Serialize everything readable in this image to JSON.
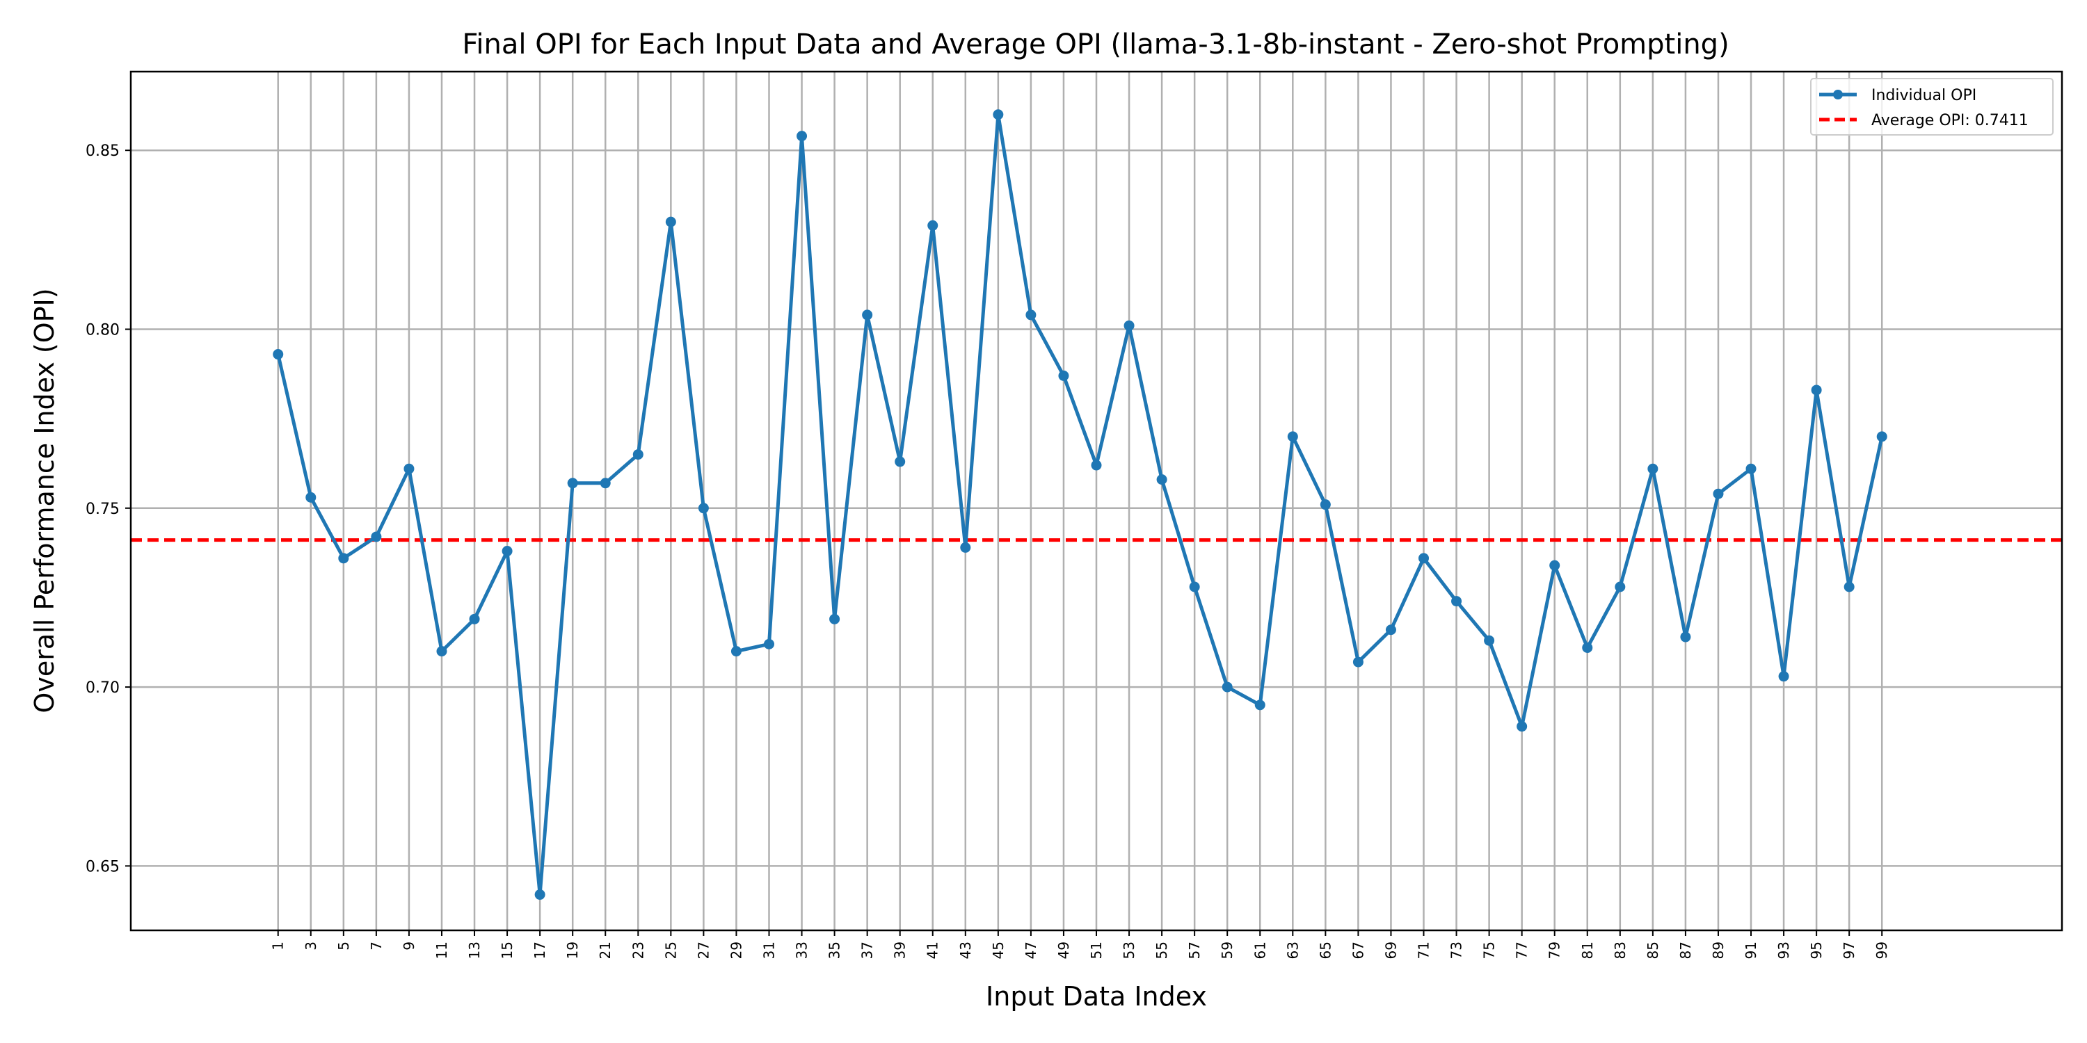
{
  "chart_data": {
    "type": "line",
    "title": "Final OPI for Each Input Data and Average OPI (llama-3.1-8b-instant - Zero-shot Prompting)",
    "xlabel": "Input Data Index",
    "ylabel": "Overall Performance Index (OPI)",
    "x": [
      1,
      3,
      5,
      7,
      9,
      11,
      13,
      15,
      17,
      19,
      21,
      23,
      25,
      27,
      29,
      31,
      33,
      35,
      37,
      39,
      41,
      43,
      45,
      47,
      49,
      51,
      53,
      55,
      57,
      59,
      61,
      63,
      65,
      67,
      69,
      71,
      73,
      75,
      77,
      79,
      81,
      83,
      85,
      87,
      89,
      91,
      93,
      95,
      97,
      99
    ],
    "xticks": [
      "1",
      "3",
      "5",
      "7",
      "9",
      "11",
      "13",
      "15",
      "17",
      "19",
      "21",
      "23",
      "25",
      "27",
      "29",
      "31",
      "33",
      "35",
      "37",
      "39",
      "41",
      "43",
      "45",
      "47",
      "49",
      "51",
      "53",
      "55",
      "57",
      "59",
      "61",
      "63",
      "65",
      "67",
      "69",
      "71",
      "73",
      "75",
      "77",
      "79",
      "81",
      "83",
      "85",
      "87",
      "89",
      "91",
      "93",
      "95",
      "97",
      "99"
    ],
    "yticks": [
      "0.65",
      "0.70",
      "0.75",
      "0.80",
      "0.85"
    ],
    "ylim": [
      0.632,
      0.872
    ],
    "xlim": [
      -8,
      110
    ],
    "grid": true,
    "legend_position": "top-right",
    "series": [
      {
        "name": "Individual OPI",
        "color": "#1f77b4",
        "style": "solid-line-with-markers",
        "values": [
          0.793,
          0.753,
          0.736,
          0.742,
          0.761,
          0.71,
          0.719,
          0.738,
          0.642,
          0.757,
          0.757,
          0.765,
          0.83,
          0.75,
          0.71,
          0.712,
          0.854,
          0.719,
          0.804,
          0.763,
          0.829,
          0.739,
          0.86,
          0.804,
          0.787,
          0.762,
          0.801,
          0.758,
          0.728,
          0.7,
          0.695,
          0.77,
          0.751,
          0.707,
          0.716,
          0.736,
          0.724,
          0.713,
          0.689,
          0.734,
          0.711,
          0.728,
          0.761,
          0.714,
          0.754,
          0.761,
          0.703,
          0.783,
          0.728,
          0.77
        ]
      },
      {
        "name": "Average OPI: 0.7411",
        "color": "#ff0000",
        "style": "dashed-horizontal-line",
        "value": 0.7411
      }
    ]
  }
}
